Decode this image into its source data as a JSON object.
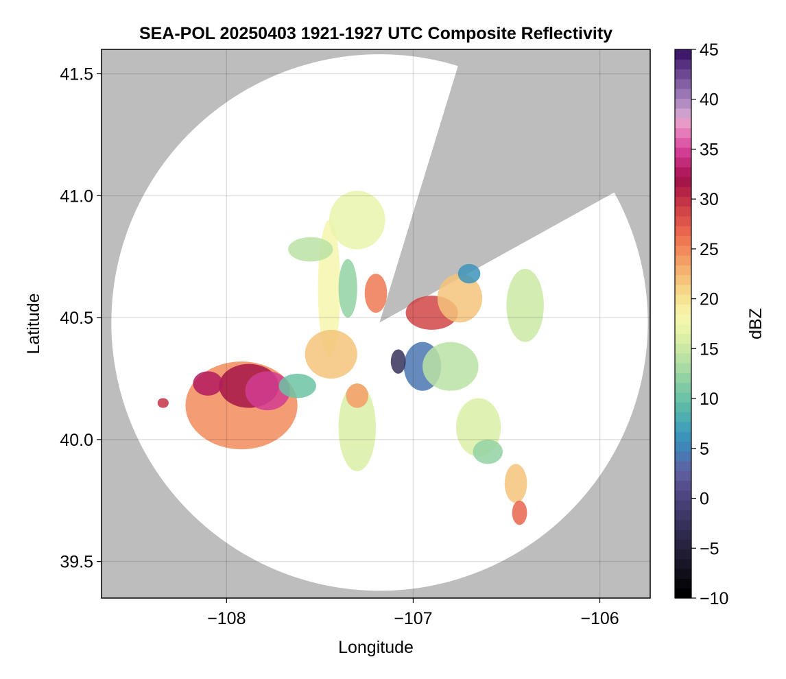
{
  "chart_data": {
    "type": "heatmap",
    "title": "SEA-POL 20250403 1921-1927 UTC Composite Reflectivity",
    "xlabel": "Longitude",
    "ylabel": "Latitude",
    "xlim": [
      -108.67,
      -105.73
    ],
    "ylim": [
      39.35,
      41.6
    ],
    "x_ticks": [
      -108,
      -107,
      -106
    ],
    "x_tick_labels": [
      "−108",
      "−107",
      "−106"
    ],
    "y_ticks": [
      39.5,
      40.0,
      40.5,
      41.0,
      41.5
    ],
    "y_tick_labels": [
      "39.5",
      "40.0",
      "40.5",
      "41.0",
      "41.5"
    ],
    "grid": true,
    "background_color": "#bdbdbd",
    "coverage_color": "#ffffff",
    "radar": {
      "center_lon": -107.18,
      "center_lat": 40.48,
      "range_deg_lat": 1.1,
      "blocked_sectors_deg_from_north": [
        [
          17,
          61
        ]
      ]
    },
    "storm_cells": [
      {
        "lon": -107.92,
        "lat": 40.14,
        "rx": 0.3,
        "ry": 0.18,
        "dbz": 25
      },
      {
        "lon": -107.88,
        "lat": 40.22,
        "rx": 0.16,
        "ry": 0.09,
        "dbz": 32
      },
      {
        "lon": -107.78,
        "lat": 40.2,
        "rx": 0.12,
        "ry": 0.08,
        "dbz": 35
      },
      {
        "lon": -108.1,
        "lat": 40.23,
        "rx": 0.08,
        "ry": 0.05,
        "dbz": 33
      },
      {
        "lon": -107.62,
        "lat": 40.22,
        "rx": 0.1,
        "ry": 0.05,
        "dbz": 10
      },
      {
        "lon": -108.34,
        "lat": 40.15,
        "rx": 0.03,
        "ry": 0.02,
        "dbz": 30
      },
      {
        "lon": -107.45,
        "lat": 40.62,
        "rx": 0.06,
        "ry": 0.28,
        "dbz": 18
      },
      {
        "lon": -107.44,
        "lat": 40.35,
        "rx": 0.14,
        "ry": 0.1,
        "dbz": 22
      },
      {
        "lon": -107.55,
        "lat": 40.78,
        "rx": 0.12,
        "ry": 0.05,
        "dbz": 14
      },
      {
        "lon": -107.3,
        "lat": 40.9,
        "rx": 0.15,
        "ry": 0.12,
        "dbz": 17
      },
      {
        "lon": -107.2,
        "lat": 40.6,
        "rx": 0.06,
        "ry": 0.08,
        "dbz": 26
      },
      {
        "lon": -107.35,
        "lat": 40.62,
        "rx": 0.05,
        "ry": 0.12,
        "dbz": 12
      },
      {
        "lon": -107.3,
        "lat": 40.05,
        "rx": 0.1,
        "ry": 0.18,
        "dbz": 16
      },
      {
        "lon": -107.3,
        "lat": 40.18,
        "rx": 0.06,
        "ry": 0.05,
        "dbz": 24
      },
      {
        "lon": -106.9,
        "lat": 40.52,
        "rx": 0.14,
        "ry": 0.07,
        "dbz": 29
      },
      {
        "lon": -106.75,
        "lat": 40.58,
        "rx": 0.12,
        "ry": 0.1,
        "dbz": 22
      },
      {
        "lon": -106.95,
        "lat": 40.3,
        "rx": 0.1,
        "ry": 0.1,
        "dbz": 4
      },
      {
        "lon": -107.08,
        "lat": 40.32,
        "rx": 0.04,
        "ry": 0.05,
        "dbz": -3
      },
      {
        "lon": -106.8,
        "lat": 40.3,
        "rx": 0.15,
        "ry": 0.1,
        "dbz": 14
      },
      {
        "lon": -106.65,
        "lat": 40.05,
        "rx": 0.12,
        "ry": 0.12,
        "dbz": 16
      },
      {
        "lon": -106.6,
        "lat": 39.95,
        "rx": 0.08,
        "ry": 0.05,
        "dbz": 12
      },
      {
        "lon": -106.45,
        "lat": 39.82,
        "rx": 0.06,
        "ry": 0.08,
        "dbz": 22
      },
      {
        "lon": -106.43,
        "lat": 39.7,
        "rx": 0.04,
        "ry": 0.05,
        "dbz": 27
      },
      {
        "lon": -106.4,
        "lat": 40.55,
        "rx": 0.1,
        "ry": 0.15,
        "dbz": 15
      },
      {
        "lon": -106.7,
        "lat": 40.68,
        "rx": 0.06,
        "ry": 0.04,
        "dbz": 6
      }
    ],
    "colorbar": {
      "label": "dBZ",
      "range": [
        -10,
        45
      ],
      "ticks": [
        -10,
        -5,
        0,
        5,
        10,
        15,
        20,
        25,
        30,
        35,
        40,
        45
      ],
      "tick_labels": [
        "−10",
        "−5",
        "0",
        "5",
        "10",
        "15",
        "20",
        "25",
        "30",
        "35",
        "40",
        "45"
      ],
      "colors": [
        "#000000",
        "#08070c",
        "#100e19",
        "#171526",
        "#1f1c33",
        "#272340",
        "#2e2a4d",
        "#36315a",
        "#3e3867",
        "#463f74",
        "#4e4681",
        "#564f8e",
        "#5e5b9b",
        "#5868a6",
        "#4a77b1",
        "#3f86b9",
        "#3d94bb",
        "#43a1b8",
        "#4eaeb0",
        "#5cb9a8",
        "#6cc3a5",
        "#7fcaa4",
        "#93d2a3",
        "#a7daa4",
        "#bae2a4",
        "#cbe9a4",
        "#dbf0a6",
        "#e9f5ab",
        "#f4f6ad",
        "#f7efa3",
        "#f7e394",
        "#f6d586",
        "#f5c47a",
        "#f4b16f",
        "#f39e65",
        "#f28b5c",
        "#ee7852",
        "#e7664d",
        "#dd554a",
        "#d14547",
        "#c43447",
        "#b52347",
        "#a51547",
        "#b21a5f",
        "#c22b7a",
        "#d13d92",
        "#dc5aa6",
        "#e57bb8",
        "#e99bc8",
        "#cfa0cd",
        "#b38cc2",
        "#9a76b4",
        "#835fa4",
        "#6c4893",
        "#563180",
        "#3f1a6c"
      ]
    }
  }
}
